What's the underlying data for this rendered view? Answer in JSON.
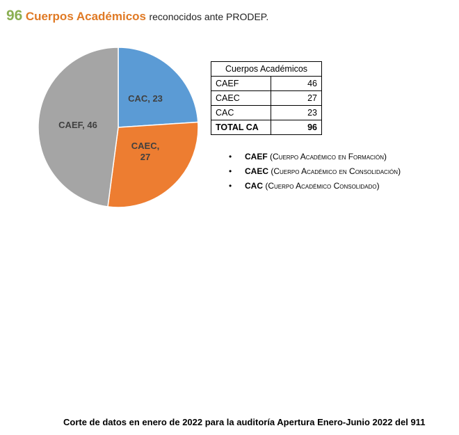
{
  "headline": {
    "count": "96",
    "subject": "Cuerpos Académicos",
    "rest": "reconocidos ante PRODEP."
  },
  "chart_data": {
    "type": "pie",
    "categories": [
      "CAC",
      "CAEC",
      "CAEF"
    ],
    "values": [
      23,
      27,
      46
    ],
    "colors": [
      "#5b9bd5",
      "#ed7d31",
      "#a5a5a5"
    ],
    "data_labels": [
      [
        "CAC, 23"
      ],
      [
        "CAEC,",
        "27"
      ],
      [
        "CAEF, 46"
      ]
    ],
    "start_angle_deg": 0,
    "direction": "clockwise"
  },
  "table": {
    "header": "Cuerpos Académicos",
    "rows": [
      {
        "label": "CAEF",
        "value": "46"
      },
      {
        "label": "CAEC",
        "value": "27"
      },
      {
        "label": "CAC",
        "value": "23"
      }
    ],
    "total": {
      "label": "TOTAL CA",
      "value": "96"
    }
  },
  "legend_items": [
    {
      "code": "CAEF",
      "desc": "Cuerpo Académico en Formación"
    },
    {
      "code": "CAEC",
      "desc": "Cuerpo Académico en Consolidación"
    },
    {
      "code": "CAC",
      "desc": "Cuerpo Académico Consolidado"
    }
  ],
  "bullet": "•",
  "footer": "Corte de datos en enero de 2022 para la auditoría Apertura Enero-Junio 2022 del 911"
}
